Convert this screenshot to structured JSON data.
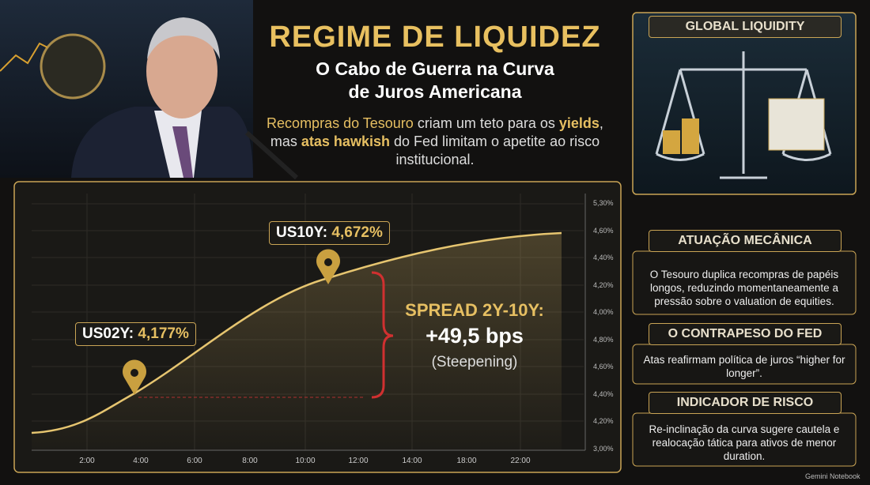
{
  "header": {
    "title": "REGIME DE LIQUIDEZ",
    "subtitle": [
      "O Cabo de Guerra na Curva",
      "de Juros Americana"
    ],
    "description": [
      {
        "text": "Recompras do Tesouro",
        "style": "gold"
      },
      {
        "text": " criam um teto para os ",
        "style": "plain"
      },
      {
        "text": "yields",
        "style": "gold-bold"
      },
      {
        "text": ", mas ",
        "style": "plain"
      },
      {
        "text": "atas hawkish",
        "style": "gold-bold"
      },
      {
        "text": " do Fed limitam o apetite ao risco institucional.",
        "style": "plain"
      }
    ]
  },
  "chart": {
    "y_axis_labels": [
      "5,30%",
      "4,60%",
      "4,40%",
      "4,20%",
      "4,00%",
      "4,80%",
      "4,60%",
      "4,40%",
      "4,20%",
      "3,00%"
    ],
    "x_axis_labels": [
      "2:00",
      "4:00",
      "6:00",
      "8:00",
      "10:00",
      "12:00",
      "14:00",
      "18:00",
      "22:00"
    ],
    "callouts": {
      "us10y": {
        "label": "US10Y:",
        "value": "4,672%"
      },
      "us02y": {
        "label": "US02Y:",
        "value": "4,177%"
      },
      "spread": {
        "label": "SPREAD 2Y-10Y:",
        "value": "+49,5 bps",
        "note": "(Steepening)"
      }
    }
  },
  "sidebar": {
    "image_title": "GLOBAL LIQUIDITY",
    "panels": [
      {
        "title": "ATUAÇÃO MECÂNICA",
        "text": "O Tesouro duplica recompras de papéis longos, reduzindo momentaneamente a pressão sobre o valuation de equities."
      },
      {
        "title": "O CONTRAPESO DO FED",
        "text": "Atas reafirmam política de juros “higher for longer”."
      },
      {
        "title": "INDICADOR DE RISCO",
        "text": "Re-inclinação da curva sugere cautela e realocação tática para ativos de menor duration."
      }
    ]
  },
  "footer": {
    "brand": "Gemini Notebook"
  }
}
